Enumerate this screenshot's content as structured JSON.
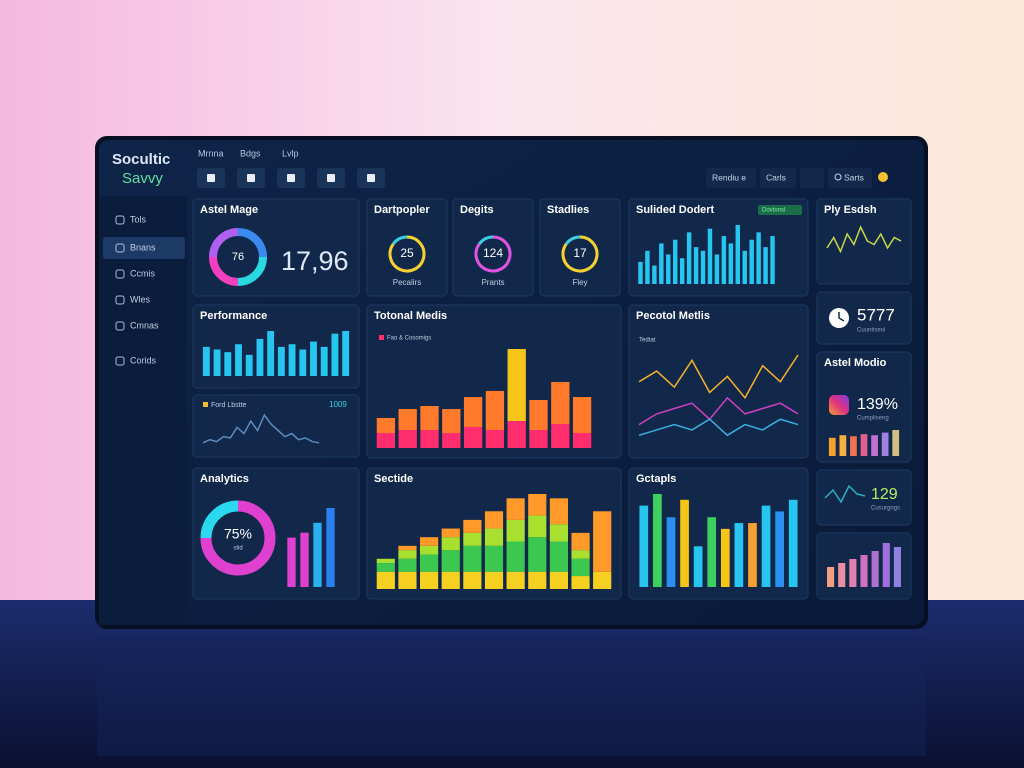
{
  "brand": {
    "name": "Socultic",
    "tagline": "Savvy"
  },
  "menu": [
    "Mrnna",
    "Bdgs",
    "Lvlp"
  ],
  "toolbar": {
    "actions": [
      "Rendiu e",
      "Carls",
      "Sarts"
    ]
  },
  "sidebar": [
    "Tols",
    "Bnans",
    "Ccmis",
    "Wles",
    "Cmnas",
    "Corids"
  ],
  "panels": [
    {
      "title": "Astel Mage",
      "type": "donut",
      "value": "76",
      "stat": "17,96"
    },
    {
      "title": "Dartpopler",
      "type": "gauge",
      "value": "25",
      "caption": "Pecalirs",
      "color": "#f5d130"
    },
    {
      "title": "Degits",
      "type": "gauge",
      "value": "124",
      "caption": "Prants",
      "color": "#e052e0"
    },
    {
      "title": "Stadlies",
      "type": "gauge",
      "value": "17",
      "caption": "Fley",
      "color": "#f5d130"
    },
    {
      "title": "Sulided Dodert",
      "type": "bars",
      "badge": "Dovtonsl",
      "color": "#27c6f0",
      "values": [
        30,
        45,
        25,
        55,
        40,
        60,
        35,
        70,
        50,
        45,
        75,
        40,
        65,
        55,
        80,
        45,
        60,
        70,
        50,
        65
      ]
    },
    {
      "title": "Ply Esdsh",
      "type": "line",
      "color": "#c8d84a",
      "values": [
        40,
        55,
        35,
        60,
        45,
        70,
        50,
        45,
        60,
        40,
        55,
        50
      ]
    },
    {
      "type": "stat",
      "value": "5777",
      "caption": "Cuuntiseol"
    },
    {
      "title": "Performance",
      "type": "bars",
      "color": "#27c6f0",
      "values": [
        55,
        50,
        45,
        60,
        40,
        70,
        85,
        55,
        60,
        50,
        65,
        55,
        80,
        85
      ]
    },
    {
      "type": "line",
      "legend": "Ford Lbstte",
      "stat": "1009",
      "color": "#5c8cc0",
      "values": [
        10,
        15,
        12,
        20,
        18,
        35,
        25,
        45,
        30,
        55,
        40,
        30,
        20,
        25,
        15,
        18,
        12,
        10
      ]
    },
    {
      "title": "Totonal Medis",
      "type": "stacked",
      "legend": "Fao & Cosomigs",
      "series": [
        {
          "color": "#ff2d6e",
          "values": [
            25,
            30,
            30,
            25,
            35,
            30,
            45,
            30,
            40,
            25
          ]
        },
        {
          "color": "#ff7a2a",
          "values": [
            25,
            35,
            40,
            40,
            50,
            65,
            0,
            50,
            70,
            60
          ]
        },
        {
          "color": "#f5c518",
          "values": [
            0,
            0,
            0,
            0,
            0,
            0,
            120,
            0,
            0,
            0
          ]
        }
      ]
    },
    {
      "title": "Pecotol Metlis",
      "type": "multiline",
      "legend": "Tedtat",
      "series": [
        {
          "color": "#f5b42a",
          "values": [
            60,
            70,
            55,
            80,
            50,
            65,
            45,
            75,
            60,
            85
          ]
        },
        {
          "color": "#d040c0",
          "values": [
            20,
            30,
            35,
            40,
            25,
            45,
            30,
            35,
            40,
            30
          ]
        },
        {
          "color": "#3ab0e0",
          "values": [
            10,
            15,
            20,
            15,
            25,
            10,
            20,
            15,
            25,
            20
          ]
        }
      ]
    },
    {
      "title": "Astel Modio",
      "type": "stat-bars",
      "value": "139%",
      "caption": "Cumpliseng",
      "values": [
        35,
        40,
        38,
        42,
        40,
        45,
        50
      ],
      "colors": [
        "#f5a030",
        "#f5b040",
        "#f07050",
        "#e06090",
        "#c070d0",
        "#a080e0",
        "#d0c080"
      ]
    },
    {
      "title": "Analytics",
      "type": "donut-bars",
      "value": "75%",
      "caption": "stid",
      "values": [
        50,
        55,
        65,
        80
      ],
      "colors": [
        "#e040d0",
        "#e040d0",
        "#2ab0f0",
        "#2a80f0"
      ]
    },
    {
      "title": "Sectide",
      "type": "stacked",
      "series": [
        {
          "color": "#f5d020",
          "values": [
            20,
            20,
            20,
            20,
            20,
            20,
            20,
            20,
            20,
            15,
            20
          ]
        },
        {
          "color": "#3cc850",
          "values": [
            10,
            15,
            20,
            25,
            30,
            30,
            35,
            40,
            35,
            20,
            0
          ]
        },
        {
          "color": "#a8e030",
          "values": [
            5,
            10,
            10,
            15,
            15,
            20,
            25,
            25,
            20,
            10,
            0
          ]
        },
        {
          "color": "#ff9a2a",
          "values": [
            0,
            5,
            10,
            10,
            15,
            20,
            25,
            25,
            30,
            20,
            70
          ]
        }
      ]
    },
    {
      "title": "Gctapls",
      "type": "bars",
      "values": [
        70,
        80,
        60,
        75,
        35,
        60,
        50,
        55,
        55,
        70,
        65,
        75
      ],
      "colors": [
        "#27c6f0",
        "#3cd060",
        "#2a90f0",
        "#f5c518",
        "#27c6f0",
        "#3cd060",
        "#f5c518",
        "#27c6f0",
        "#f5a030",
        "#27c6f0",
        "#2a90f0",
        "#27c6f0"
      ]
    },
    {
      "type": "stat-line",
      "value": "129",
      "caption": "Cusurgngs",
      "color": "#2ab0c0",
      "values": [
        40,
        60,
        30,
        70,
        50,
        45
      ]
    },
    {
      "type": "bars",
      "values": [
        25,
        30,
        35,
        40,
        45,
        55,
        50
      ],
      "colors": [
        "#f0a080",
        "#e890a0",
        "#e080b0",
        "#d070c0",
        "#b070d0",
        "#a070e0",
        "#9080e0"
      ]
    }
  ]
}
